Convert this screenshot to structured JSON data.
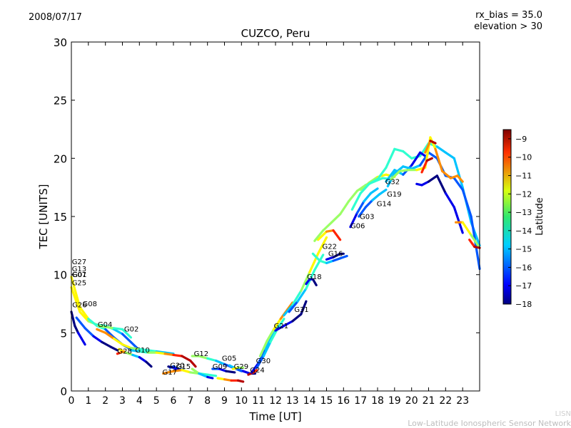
{
  "header": {
    "date": "2008/07/17",
    "rx_bias": "rx_bias = 35.0",
    "elevation": "elevation > 30"
  },
  "footer": {
    "line1": "LISN",
    "line2": "Low-Latitude Ionospheric Sensor Network"
  },
  "chart_data": {
    "type": "scatter",
    "title": "CUZCO, Peru",
    "xlabel": "Time [UT]",
    "ylabel": "TEC [UNITS]",
    "xlim": [
      0,
      24
    ],
    "ylim": [
      0,
      30
    ],
    "x_ticks": [
      "0",
      "1",
      "2",
      "3",
      "4",
      "5",
      "6",
      "7",
      "8",
      "9",
      "10",
      "11",
      "12",
      "13",
      "14",
      "15",
      "16",
      "17",
      "18",
      "19",
      "20",
      "21",
      "22",
      "23"
    ],
    "y_ticks": [
      "0",
      "5",
      "10",
      "15",
      "20",
      "25",
      "30"
    ],
    "grid": false,
    "colorbar": {
      "label": "Latitude",
      "range": [
        -18,
        -8.5
      ],
      "ticks": [
        "-9",
        "-10",
        "-11",
        "-12",
        "-13",
        "-14",
        "-15",
        "-16",
        "-17",
        "-18"
      ]
    },
    "satellite_labels": [
      {
        "text": "G27",
        "x": 0.03,
        "y": 10.9
      },
      {
        "text": "G13",
        "x": 0.03,
        "y": 10.3
      },
      {
        "text": "G07",
        "x": 0.03,
        "y": 9.8
      },
      {
        "text": "G01",
        "x": 0.05,
        "y": 9.8
      },
      {
        "text": "G25",
        "x": 0.03,
        "y": 9.1
      },
      {
        "text": "G26",
        "x": 0.05,
        "y": 7.2
      },
      {
        "text": "G08",
        "x": 0.65,
        "y": 7.3
      },
      {
        "text": "G04",
        "x": 1.55,
        "y": 5.5
      },
      {
        "text": "G02",
        "x": 3.1,
        "y": 5.1
      },
      {
        "text": "G28",
        "x": 2.7,
        "y": 3.2
      },
      {
        "text": "G10",
        "x": 3.75,
        "y": 3.3
      },
      {
        "text": "G20",
        "x": 5.8,
        "y": 2.0
      },
      {
        "text": "G15",
        "x": 6.15,
        "y": 1.9
      },
      {
        "text": "G17",
        "x": 5.35,
        "y": 1.4
      },
      {
        "text": "G12",
        "x": 7.2,
        "y": 3.0
      },
      {
        "text": "G05",
        "x": 8.85,
        "y": 2.6
      },
      {
        "text": "G09",
        "x": 8.3,
        "y": 1.9
      },
      {
        "text": "G29",
        "x": 9.55,
        "y": 1.9
      },
      {
        "text": "G30",
        "x": 10.85,
        "y": 2.4
      },
      {
        "text": "G24",
        "x": 10.5,
        "y": 1.6
      },
      {
        "text": "G21",
        "x": 11.9,
        "y": 5.4
      },
      {
        "text": "G31",
        "x": 13.1,
        "y": 6.8
      },
      {
        "text": "G18",
        "x": 13.85,
        "y": 9.6
      },
      {
        "text": "G22",
        "x": 14.75,
        "y": 12.2
      },
      {
        "text": "G16",
        "x": 15.1,
        "y": 11.6
      },
      {
        "text": "G06",
        "x": 16.4,
        "y": 14.0
      },
      {
        "text": "G03",
        "x": 16.95,
        "y": 14.8
      },
      {
        "text": "G14",
        "x": 17.95,
        "y": 15.9
      },
      {
        "text": "G19",
        "x": 18.55,
        "y": 16.7
      },
      {
        "text": "G32",
        "x": 18.45,
        "y": 17.8
      }
    ],
    "series": [
      {
        "latitudes": [
          -12,
          -13,
          -14,
          -15,
          -16
        ],
        "x": [
          0,
          0.5,
          1,
          1.5,
          2,
          2.5,
          3,
          3.5,
          4
        ],
        "y": [
          8.9,
          6.8,
          6.0,
          5.7,
          5.6,
          5.3,
          4.9,
          4.2,
          3.5
        ]
      },
      {
        "latitudes": [
          -18,
          -17
        ],
        "x": [
          0,
          0.2,
          0.4,
          0.6,
          0.8
        ],
        "y": [
          6.8,
          5.6,
          5.0,
          4.5,
          4.0
        ]
      },
      {
        "latitudes": [
          -16,
          -17,
          -18
        ],
        "x": [
          0.3,
          0.8,
          1.3,
          1.8,
          2.3,
          2.7
        ],
        "y": [
          6.3,
          5.4,
          4.7,
          4.2,
          3.8,
          3.5
        ]
      },
      {
        "latitudes": [
          -12,
          -14,
          -16
        ],
        "x": [
          0,
          0.5,
          1,
          1.5,
          2,
          2.5,
          3,
          3.6
        ],
        "y": [
          9.8,
          7.2,
          6.2,
          5.6,
          5.3,
          4.6,
          4.0,
          3.5
        ]
      },
      {
        "latitudes": [
          -13,
          -13,
          -14
        ],
        "x": [
          1.6,
          2.0,
          2.5,
          3.0,
          3.5
        ],
        "y": [
          5.6,
          5.5,
          5.4,
          5.3,
          4.6
        ]
      },
      {
        "latitudes": [
          -11,
          -12,
          -13,
          -14,
          -15
        ],
        "x": [
          1.5,
          2,
          2.5,
          3,
          3.5,
          4,
          4.5,
          5,
          5.5,
          6
        ],
        "y": [
          5.3,
          5.0,
          4.5,
          4.0,
          3.7,
          3.6,
          3.5,
          3.4,
          3.3,
          3.2
        ]
      },
      {
        "latitudes": [
          -12,
          -13,
          -14,
          -15,
          -16,
          -17,
          -18
        ],
        "x": [
          2.8,
          3.2,
          3.6,
          4,
          4.4,
          4.7
        ],
        "y": [
          3.6,
          3.3,
          3.1,
          2.9,
          2.5,
          2.1
        ]
      },
      {
        "latitudes": [
          -10,
          -11
        ],
        "x": [
          2.7,
          2.9,
          3.1
        ],
        "y": [
          3.2,
          3.3,
          3.4
        ]
      },
      {
        "latitudes": [
          -15,
          -14,
          -13,
          -12,
          -11,
          -10,
          -9
        ],
        "x": [
          3.5,
          4,
          4.5,
          5,
          5.5,
          6,
          6.5,
          7,
          7.3
        ],
        "y": [
          3.5,
          3.4,
          3.3,
          3.3,
          3.2,
          3.1,
          3.0,
          2.6,
          2.1
        ]
      },
      {
        "latitudes": [
          -16,
          -16
        ],
        "x": [
          5.8,
          6.0,
          6.3,
          6.6
        ],
        "y": [
          2.0,
          2.1,
          1.9,
          1.8
        ]
      },
      {
        "latitudes": [
          -18,
          -17
        ],
        "x": [
          5.7,
          6.0,
          6.3
        ],
        "y": [
          2.1,
          2.0,
          1.8
        ]
      },
      {
        "latitudes": [
          -11,
          -12,
          -13,
          -14
        ],
        "x": [
          5.4,
          6,
          6.5,
          7,
          7.5,
          8,
          8.5
        ],
        "y": [
          1.5,
          1.7,
          1.8,
          1.6,
          1.5,
          1.4,
          1.3
        ]
      },
      {
        "latitudes": [
          -13,
          -14,
          -15,
          -16
        ],
        "x": [
          7.1,
          7.5,
          8,
          8.5,
          9,
          9.5,
          10
        ],
        "y": [
          3.0,
          3.0,
          2.8,
          2.6,
          2.3,
          2.0,
          1.7
        ]
      },
      {
        "latitudes": [
          -13,
          -14,
          -15,
          -16,
          -17
        ],
        "x": [
          7.1,
          7.5,
          8,
          8.3
        ],
        "y": [
          1.9,
          1.5,
          1.2,
          1.1
        ]
      },
      {
        "latitudes": [
          -16,
          -17,
          -18
        ],
        "x": [
          8.3,
          8.7,
          9.1,
          9.6
        ],
        "y": [
          1.9,
          1.9,
          1.7,
          1.6
        ]
      },
      {
        "latitudes": [
          -12,
          -11,
          -10,
          -9
        ],
        "x": [
          8.6,
          9,
          9.4,
          9.8,
          10.1
        ],
        "y": [
          1.1,
          1.0,
          0.9,
          0.9,
          0.8
        ]
      },
      {
        "latitudes": [
          -15,
          -16,
          -17,
          -18
        ],
        "x": [
          9.3,
          9.7,
          10.1,
          10.5,
          10.8
        ],
        "y": [
          2.2,
          1.9,
          1.7,
          1.5,
          1.5
        ]
      },
      {
        "latitudes": [
          -12,
          -13
        ],
        "x": [
          9.5,
          9.8,
          10.1
        ],
        "y": [
          1.9,
          2.0,
          2.0
        ]
      },
      {
        "latitudes": [
          -9,
          -10
        ],
        "x": [
          10.4,
          10.7,
          10.9
        ],
        "y": [
          1.4,
          1.6,
          1.8
        ]
      },
      {
        "latitudes": [
          -17,
          -16,
          -15
        ],
        "x": [
          10.6,
          11.0,
          11.4,
          11.8,
          12.2
        ],
        "y": [
          1.6,
          2.4,
          3.6,
          4.7,
          5.6
        ]
      },
      {
        "latitudes": [
          -16,
          -15,
          -14
        ],
        "x": [
          10.9,
          11.3,
          11.7,
          12.1,
          12.5
        ],
        "y": [
          2.0,
          3.0,
          4.2,
          5.3,
          6.2
        ]
      },
      {
        "latitudes": [
          -13,
          -12,
          -11
        ],
        "x": [
          11.1,
          11.5,
          11.9,
          12.3,
          12.7,
          13.0
        ],
        "y": [
          3.0,
          4.3,
          5.3,
          6.2,
          7.0,
          7.6
        ]
      },
      {
        "latitudes": [
          -17,
          -17,
          -18
        ],
        "x": [
          12.0,
          12.5,
          13.0,
          13.5,
          13.8
        ],
        "y": [
          5.2,
          5.6,
          6.0,
          6.6,
          7.7
        ]
      },
      {
        "latitudes": [
          -15,
          -14,
          -13,
          -12
        ],
        "x": [
          12.5,
          13,
          13.5,
          14,
          14.5,
          15
        ],
        "y": [
          6.5,
          7.4,
          8.6,
          10.2,
          11.8,
          13.2
        ]
      },
      {
        "latitudes": [
          -16,
          -15,
          -14
        ],
        "x": [
          12.8,
          13.3,
          13.8,
          14.3,
          14.8
        ],
        "y": [
          6.8,
          7.7,
          8.8,
          10.4,
          11.7
        ]
      },
      {
        "latitudes": [
          -17,
          -17,
          -18
        ],
        "x": [
          13.8,
          14.0,
          14.2,
          14.4
        ],
        "y": [
          9.2,
          9.6,
          9.6,
          9.1
        ]
      },
      {
        "latitudes": [
          -14,
          -15,
          -16
        ],
        "x": [
          14.2,
          14.6,
          15,
          15.4,
          15.8,
          16.2
        ],
        "y": [
          11.8,
          11.2,
          11.0,
          11.2,
          11.4,
          11.6
        ]
      },
      {
        "latitudes": [
          -17,
          -18
        ],
        "x": [
          15.0,
          15.4,
          15.8,
          16.0
        ],
        "y": [
          11.3,
          11.5,
          11.8,
          11.8
        ]
      },
      {
        "latitudes": [
          -12,
          -11,
          -10
        ],
        "x": [
          14.5,
          15,
          15.4,
          15.8
        ],
        "y": [
          13.0,
          13.7,
          13.8,
          13.0
        ]
      },
      {
        "latitudes": [
          -13,
          -13,
          -14
        ],
        "x": [
          14.3,
          14.8,
          15.3,
          15.8,
          16.3,
          16.8,
          17.3,
          17.8,
          18.3,
          18.8
        ],
        "y": [
          12.9,
          13.8,
          14.5,
          15.2,
          16.3,
          17.2,
          17.7,
          18.0,
          18.3,
          18.2
        ]
      },
      {
        "latitudes": [
          -17,
          -16,
          -15
        ],
        "x": [
          16.4,
          16.8,
          17.2,
          17.6,
          18.0
        ],
        "y": [
          14.1,
          15.3,
          16.3,
          17.0,
          17.4
        ]
      },
      {
        "latitudes": [
          -16,
          -15
        ],
        "x": [
          16.9,
          17.3,
          17.7,
          18.1,
          18.5
        ],
        "y": [
          15.0,
          15.8,
          16.4,
          16.9,
          17.3
        ]
      },
      {
        "latitudes": [
          -13,
          -12
        ],
        "x": [
          17.0,
          17.5,
          18.0,
          18.5,
          19.0
        ],
        "y": [
          17.3,
          17.9,
          18.4,
          18.6,
          18.4
        ]
      },
      {
        "latitudes": [
          -14,
          -14,
          -15
        ],
        "x": [
          16.5,
          17,
          17.5,
          18,
          18.5,
          19,
          19.5,
          20,
          20.5,
          21,
          21.5,
          22,
          22.5,
          23,
          23.5,
          24
        ],
        "y": [
          15.6,
          17.0,
          17.8,
          18.2,
          19.2,
          20.8,
          20.6,
          20.0,
          20.2,
          21.3,
          21.0,
          20.5,
          20.0,
          17.5,
          14.5,
          12.5
        ]
      },
      {
        "latitudes": [
          -15,
          -16,
          -17
        ],
        "x": [
          18.5,
          19,
          19.5,
          20,
          20.5,
          20.8
        ],
        "y": [
          18.0,
          19.0,
          18.6,
          19.4,
          20.5,
          20.2
        ]
      },
      {
        "latitudes": [
          -15,
          -16,
          -16
        ],
        "x": [
          18.6,
          19,
          19.5,
          20,
          20.5,
          21,
          21.5,
          22,
          22.5,
          23,
          23.5,
          24
        ],
        "y": [
          17.6,
          18.7,
          19.3,
          19.1,
          19.4,
          20.5,
          20.0,
          18.5,
          18.3,
          17.3,
          15.0,
          10.5
        ]
      },
      {
        "latitudes": [
          -13,
          -12,
          -11
        ],
        "x": [
          18.8,
          19.3,
          19.8,
          20.3,
          20.8,
          21.1,
          21.4,
          21.8,
          22.3,
          22.7,
          23.0
        ],
        "y": [
          18.2,
          18.9,
          19.0,
          19.0,
          19.2,
          21.8,
          20.8,
          18.9,
          18.3,
          18.5,
          18.0
        ]
      },
      {
        "latitudes": [
          -17,
          -18,
          -17
        ],
        "x": [
          20.3,
          20.6,
          21.0,
          21.5,
          22.0,
          22.5,
          23.0
        ],
        "y": [
          17.8,
          17.7,
          18.0,
          18.5,
          17.0,
          15.8,
          13.6
        ]
      },
      {
        "latitudes": [
          -10,
          -9
        ],
        "x": [
          20.6,
          20.9,
          21.2
        ],
        "y": [
          18.8,
          19.8,
          20.0
        ]
      },
      {
        "latitudes": [
          -11,
          -10,
          -9
        ],
        "x": [
          20.8,
          21.1,
          21.4
        ],
        "y": [
          20.5,
          21.5,
          21.3
        ]
      },
      {
        "latitudes": [
          -11,
          -12,
          -13
        ],
        "x": [
          22.6,
          23.0,
          23.5,
          24.0
        ],
        "y": [
          14.5,
          14.5,
          13.4,
          12.3
        ]
      },
      {
        "latitudes": [
          -10,
          -9
        ],
        "x": [
          23.4,
          23.7,
          24.0
        ],
        "y": [
          13.0,
          12.4,
          12.3
        ]
      }
    ]
  }
}
